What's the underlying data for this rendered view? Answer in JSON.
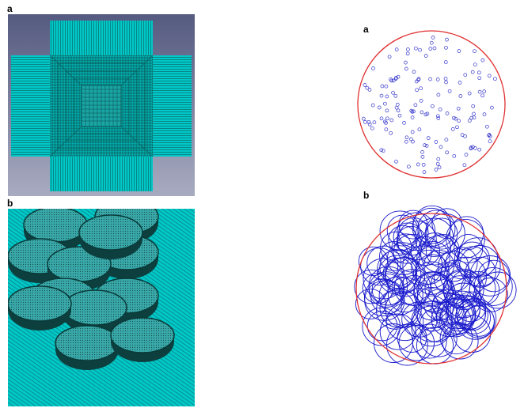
{
  "labels": {
    "left_top": "a",
    "left_bottom": "b",
    "right_top": "a",
    "right_bottom": "b"
  },
  "colors": {
    "mesh_cyan": "#00c4c4",
    "mesh_line": "#0a5a5a",
    "background_gray": "#6b6f8a",
    "boundary_red": "#e03030",
    "particle_blue": "#2222cc"
  }
}
